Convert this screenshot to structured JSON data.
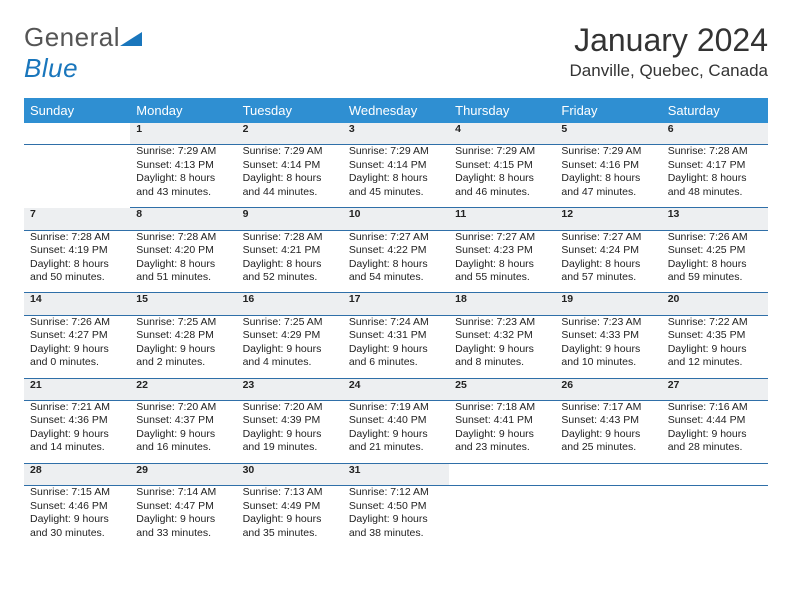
{
  "brand": {
    "name_part1": "General",
    "name_part2": "Blue"
  },
  "title": "January 2024",
  "location": "Danville, Quebec, Canada",
  "weekdays": [
    "Sunday",
    "Monday",
    "Tuesday",
    "Wednesday",
    "Thursday",
    "Friday",
    "Saturday"
  ],
  "colors": {
    "header_bg": "#2f8fd2",
    "header_text": "#ffffff",
    "daynum_bg": "#edeff1",
    "row_divider": "#2f6fa8",
    "brand_blue": "#1976bc"
  },
  "first_weekday_index": 1,
  "days": [
    {
      "n": 1,
      "sunrise": "7:29 AM",
      "sunset": "4:13 PM",
      "daylight": "8 hours and 43 minutes."
    },
    {
      "n": 2,
      "sunrise": "7:29 AM",
      "sunset": "4:14 PM",
      "daylight": "8 hours and 44 minutes."
    },
    {
      "n": 3,
      "sunrise": "7:29 AM",
      "sunset": "4:14 PM",
      "daylight": "8 hours and 45 minutes."
    },
    {
      "n": 4,
      "sunrise": "7:29 AM",
      "sunset": "4:15 PM",
      "daylight": "8 hours and 46 minutes."
    },
    {
      "n": 5,
      "sunrise": "7:29 AM",
      "sunset": "4:16 PM",
      "daylight": "8 hours and 47 minutes."
    },
    {
      "n": 6,
      "sunrise": "7:28 AM",
      "sunset": "4:17 PM",
      "daylight": "8 hours and 48 minutes."
    },
    {
      "n": 7,
      "sunrise": "7:28 AM",
      "sunset": "4:19 PM",
      "daylight": "8 hours and 50 minutes."
    },
    {
      "n": 8,
      "sunrise": "7:28 AM",
      "sunset": "4:20 PM",
      "daylight": "8 hours and 51 minutes."
    },
    {
      "n": 9,
      "sunrise": "7:28 AM",
      "sunset": "4:21 PM",
      "daylight": "8 hours and 52 minutes."
    },
    {
      "n": 10,
      "sunrise": "7:27 AM",
      "sunset": "4:22 PM",
      "daylight": "8 hours and 54 minutes."
    },
    {
      "n": 11,
      "sunrise": "7:27 AM",
      "sunset": "4:23 PM",
      "daylight": "8 hours and 55 minutes."
    },
    {
      "n": 12,
      "sunrise": "7:27 AM",
      "sunset": "4:24 PM",
      "daylight": "8 hours and 57 minutes."
    },
    {
      "n": 13,
      "sunrise": "7:26 AM",
      "sunset": "4:25 PM",
      "daylight": "8 hours and 59 minutes."
    },
    {
      "n": 14,
      "sunrise": "7:26 AM",
      "sunset": "4:27 PM",
      "daylight": "9 hours and 0 minutes."
    },
    {
      "n": 15,
      "sunrise": "7:25 AM",
      "sunset": "4:28 PM",
      "daylight": "9 hours and 2 minutes."
    },
    {
      "n": 16,
      "sunrise": "7:25 AM",
      "sunset": "4:29 PM",
      "daylight": "9 hours and 4 minutes."
    },
    {
      "n": 17,
      "sunrise": "7:24 AM",
      "sunset": "4:31 PM",
      "daylight": "9 hours and 6 minutes."
    },
    {
      "n": 18,
      "sunrise": "7:23 AM",
      "sunset": "4:32 PM",
      "daylight": "9 hours and 8 minutes."
    },
    {
      "n": 19,
      "sunrise": "7:23 AM",
      "sunset": "4:33 PM",
      "daylight": "9 hours and 10 minutes."
    },
    {
      "n": 20,
      "sunrise": "7:22 AM",
      "sunset": "4:35 PM",
      "daylight": "9 hours and 12 minutes."
    },
    {
      "n": 21,
      "sunrise": "7:21 AM",
      "sunset": "4:36 PM",
      "daylight": "9 hours and 14 minutes."
    },
    {
      "n": 22,
      "sunrise": "7:20 AM",
      "sunset": "4:37 PM",
      "daylight": "9 hours and 16 minutes."
    },
    {
      "n": 23,
      "sunrise": "7:20 AM",
      "sunset": "4:39 PM",
      "daylight": "9 hours and 19 minutes."
    },
    {
      "n": 24,
      "sunrise": "7:19 AM",
      "sunset": "4:40 PM",
      "daylight": "9 hours and 21 minutes."
    },
    {
      "n": 25,
      "sunrise": "7:18 AM",
      "sunset": "4:41 PM",
      "daylight": "9 hours and 23 minutes."
    },
    {
      "n": 26,
      "sunrise": "7:17 AM",
      "sunset": "4:43 PM",
      "daylight": "9 hours and 25 minutes."
    },
    {
      "n": 27,
      "sunrise": "7:16 AM",
      "sunset": "4:44 PM",
      "daylight": "9 hours and 28 minutes."
    },
    {
      "n": 28,
      "sunrise": "7:15 AM",
      "sunset": "4:46 PM",
      "daylight": "9 hours and 30 minutes."
    },
    {
      "n": 29,
      "sunrise": "7:14 AM",
      "sunset": "4:47 PM",
      "daylight": "9 hours and 33 minutes."
    },
    {
      "n": 30,
      "sunrise": "7:13 AM",
      "sunset": "4:49 PM",
      "daylight": "9 hours and 35 minutes."
    },
    {
      "n": 31,
      "sunrise": "7:12 AM",
      "sunset": "4:50 PM",
      "daylight": "9 hours and 38 minutes."
    }
  ],
  "labels": {
    "sunrise": "Sunrise:",
    "sunset": "Sunset:",
    "daylight": "Daylight:"
  }
}
